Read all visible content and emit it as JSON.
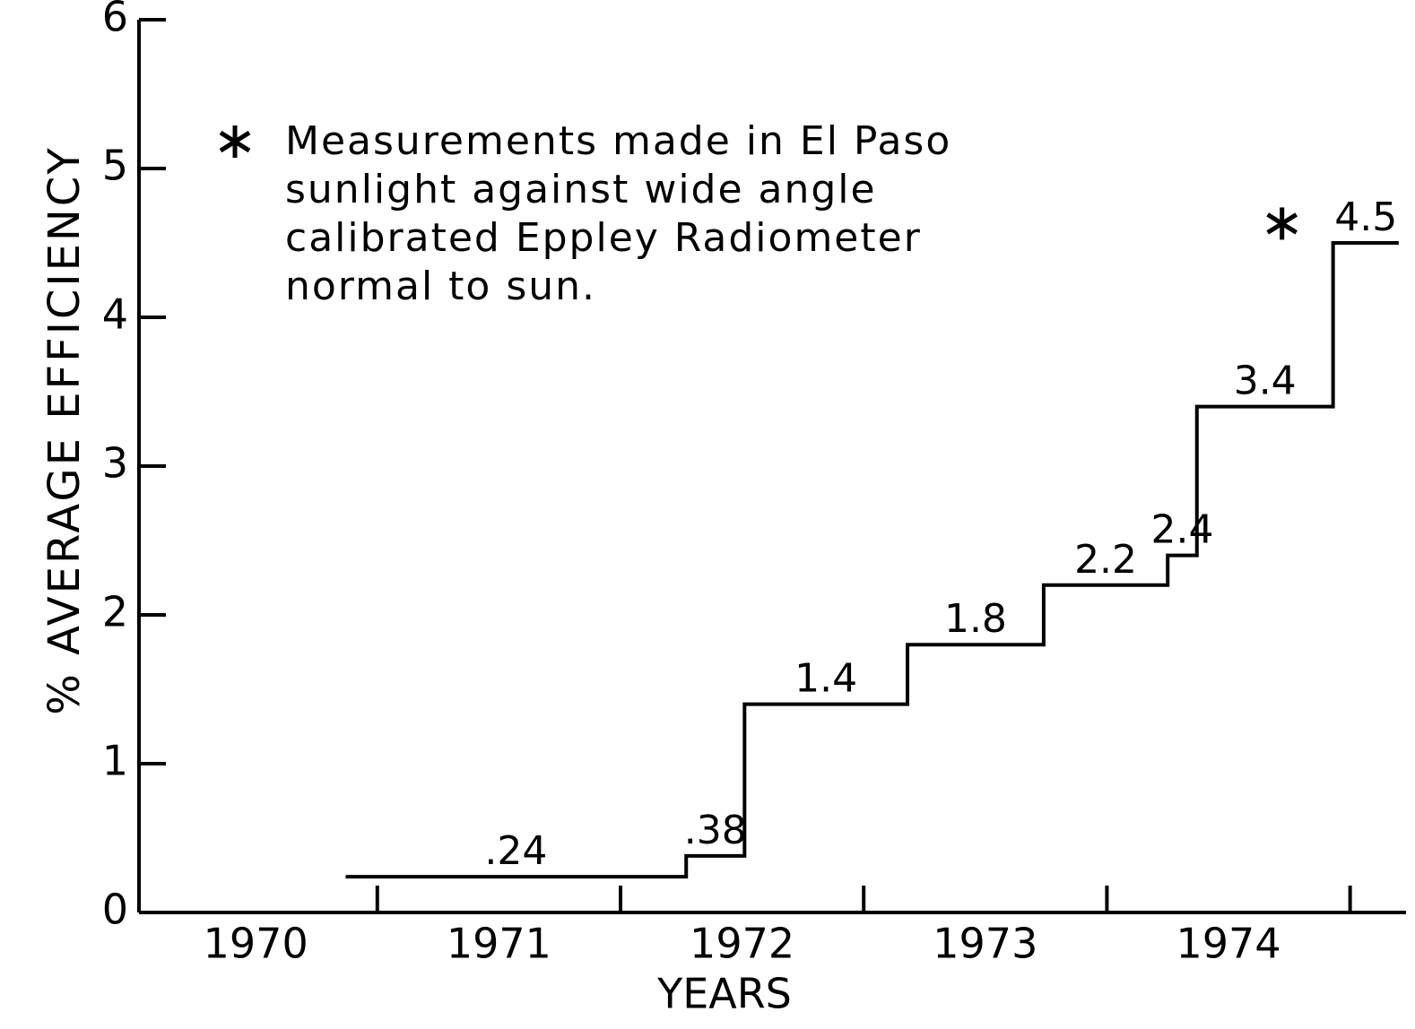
{
  "chart_data": {
    "type": "step",
    "ylabel": "% AVERAGE EFFICIENCY",
    "xlabel": "YEARS",
    "edges": [
      1970.87,
      1972.27,
      1972.51,
      1973.18,
      1973.74,
      1974.25,
      1974.37,
      1974.93,
      1975.2
    ],
    "values": [
      0.24,
      0.38,
      1.4,
      1.8,
      2.2,
      2.4,
      3.4,
      4.5
    ],
    "value_labels": [
      ".24",
      ".38",
      "1.4",
      "1.8",
      "2.2",
      "2.4",
      "3.4",
      "4.5"
    ],
    "color": "#000000",
    "xlim": [
      1970.02,
      1975.23
    ],
    "ylim": [
      0,
      6
    ],
    "yticks": [
      0,
      1,
      2,
      3,
      4,
      5,
      6
    ],
    "xticks": [
      {
        "value": 1970.5,
        "label": "1970"
      },
      {
        "value": 1971.5,
        "label": "1971"
      },
      {
        "value": 1972.5,
        "label": "1972"
      },
      {
        "value": 1973.5,
        "label": "1973"
      },
      {
        "value": 1974.5,
        "label": "1974"
      }
    ],
    "xtick_marks": [
      1971,
      1972,
      1973,
      1974,
      1975
    ],
    "point": {
      "x": 1974.72,
      "y": 4.63
    },
    "annotation": [
      "Measurements made in El Paso",
      "sunlight against wide angle",
      "calibrated Eppley Radiometer",
      "normal to sun."
    ]
  }
}
